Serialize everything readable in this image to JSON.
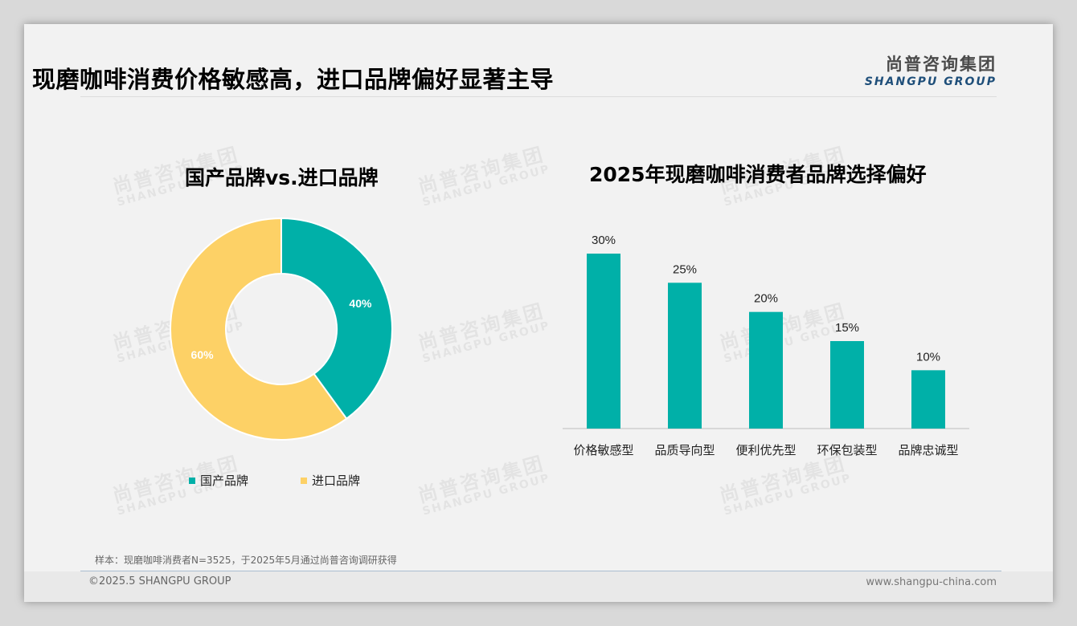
{
  "page": {
    "title": "现磨咖啡消费价格敏感高，进口品牌偏好显著主导",
    "logo_cn": "尚普咨询集团",
    "logo_en": "SHANGPU GROUP",
    "watermark_cn": "尚普咨询集团",
    "watermark_en": "SHANGPU GROUP",
    "note": "样本：现磨咖啡消费者N=3525，于2025年5月通过尚普咨询调研获得",
    "copyright": "©2025.5 SHANGPU GROUP",
    "website": "www.shangpu-china.com"
  },
  "chart_data": [
    {
      "type": "pie",
      "title": "国产品牌vs.进口品牌",
      "donut": true,
      "categories": [
        "国产品牌",
        "进口品牌"
      ],
      "values": [
        40,
        60
      ],
      "labels": [
        "40%",
        "60%"
      ],
      "colors": [
        "#00b0a8",
        "#fdd166"
      ],
      "legend": "bottom"
    },
    {
      "type": "bar",
      "title": "2025年现磨咖啡消费者品牌选择偏好",
      "categories": [
        "价格敏感型",
        "品质导向型",
        "便利优先型",
        "环保包装型",
        "品牌忠诚型"
      ],
      "values": [
        30,
        25,
        20,
        15,
        10
      ],
      "labels": [
        "30%",
        "25%",
        "20%",
        "15%",
        "10%"
      ],
      "color": "#00b0a8",
      "ylim": [
        0,
        30
      ],
      "grid": false
    }
  ]
}
